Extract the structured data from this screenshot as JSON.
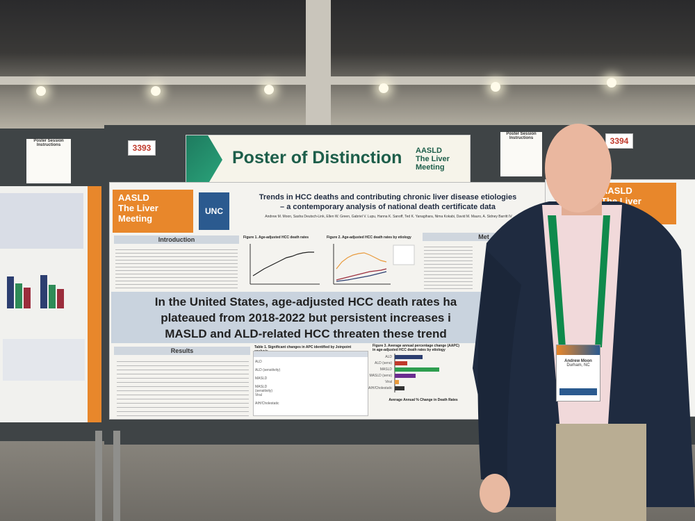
{
  "scene": {
    "description_colors": {
      "board": "#3f4446",
      "orange": "#e8872b",
      "green": "#1d5e4a",
      "jacket": "#1f2b40"
    }
  },
  "boards": {
    "left_number": "3393",
    "right_number": "3394",
    "instruction_sign": "Poster Session Instructions"
  },
  "banner": {
    "title": "Poster of Distinction",
    "brand_line1": "AASLD",
    "brand_line2": "The Liver",
    "brand_line3": "Meeting"
  },
  "poster": {
    "logo_line1": "AASLD",
    "logo_line2": "The Liver",
    "logo_line3": "Meeting",
    "unc": "UNC",
    "title_line1": "Trends in HCC deaths and contributing chronic liver disease etiologies",
    "title_line2": "– a contemporary analysis of national death certificate data",
    "authors": "Andrew M. Moon, Sasha Deutsch-Link, Ellen W. Green, Gabriel V. Lupu, Hanna K. Sanoff, Ted K. Yanagihara, Nima Kokabi, David M. Mauro, A. Sidney Barritt IV",
    "introduction_heading": "Introduction",
    "figure1_title": "Figure 1. Age-adjusted HCC death rates",
    "figure2_title": "Figure 2. Age-adjusted HCC death rates by etiology",
    "methods_heading": "Met",
    "headline_line1": "In the United States, age-adjusted HCC death rates ha",
    "headline_line2": "plateaued from 2018-2022 but persistent increases i",
    "headline_line3": "MASLD and ALD-related HCC threaten these trend",
    "results_heading": "Results",
    "table_title": "Table 1. Significant changes in APC identified by Joinpoint analysis",
    "figure3_title": "Figure 3. Average annual percentage change (AAPC) in age-adjusted HCC death rates by etiology",
    "figure3_xlabel": "Average Annual % Change in Death Rates",
    "figure3_labels": [
      "ALD",
      "ALD (sens)",
      "MASLD",
      "MASLD (sens)",
      "Viral",
      "AIH/Cholestatic"
    ],
    "table_rows": [
      "ALD",
      "ALD (sensitivity)",
      "MASLD",
      "MASLD (sensitivity)",
      "Viral",
      "AIH/Cholestatic"
    ]
  },
  "attendee_badge": {
    "name": "Andrew Moon",
    "location": "Durham, NC"
  }
}
